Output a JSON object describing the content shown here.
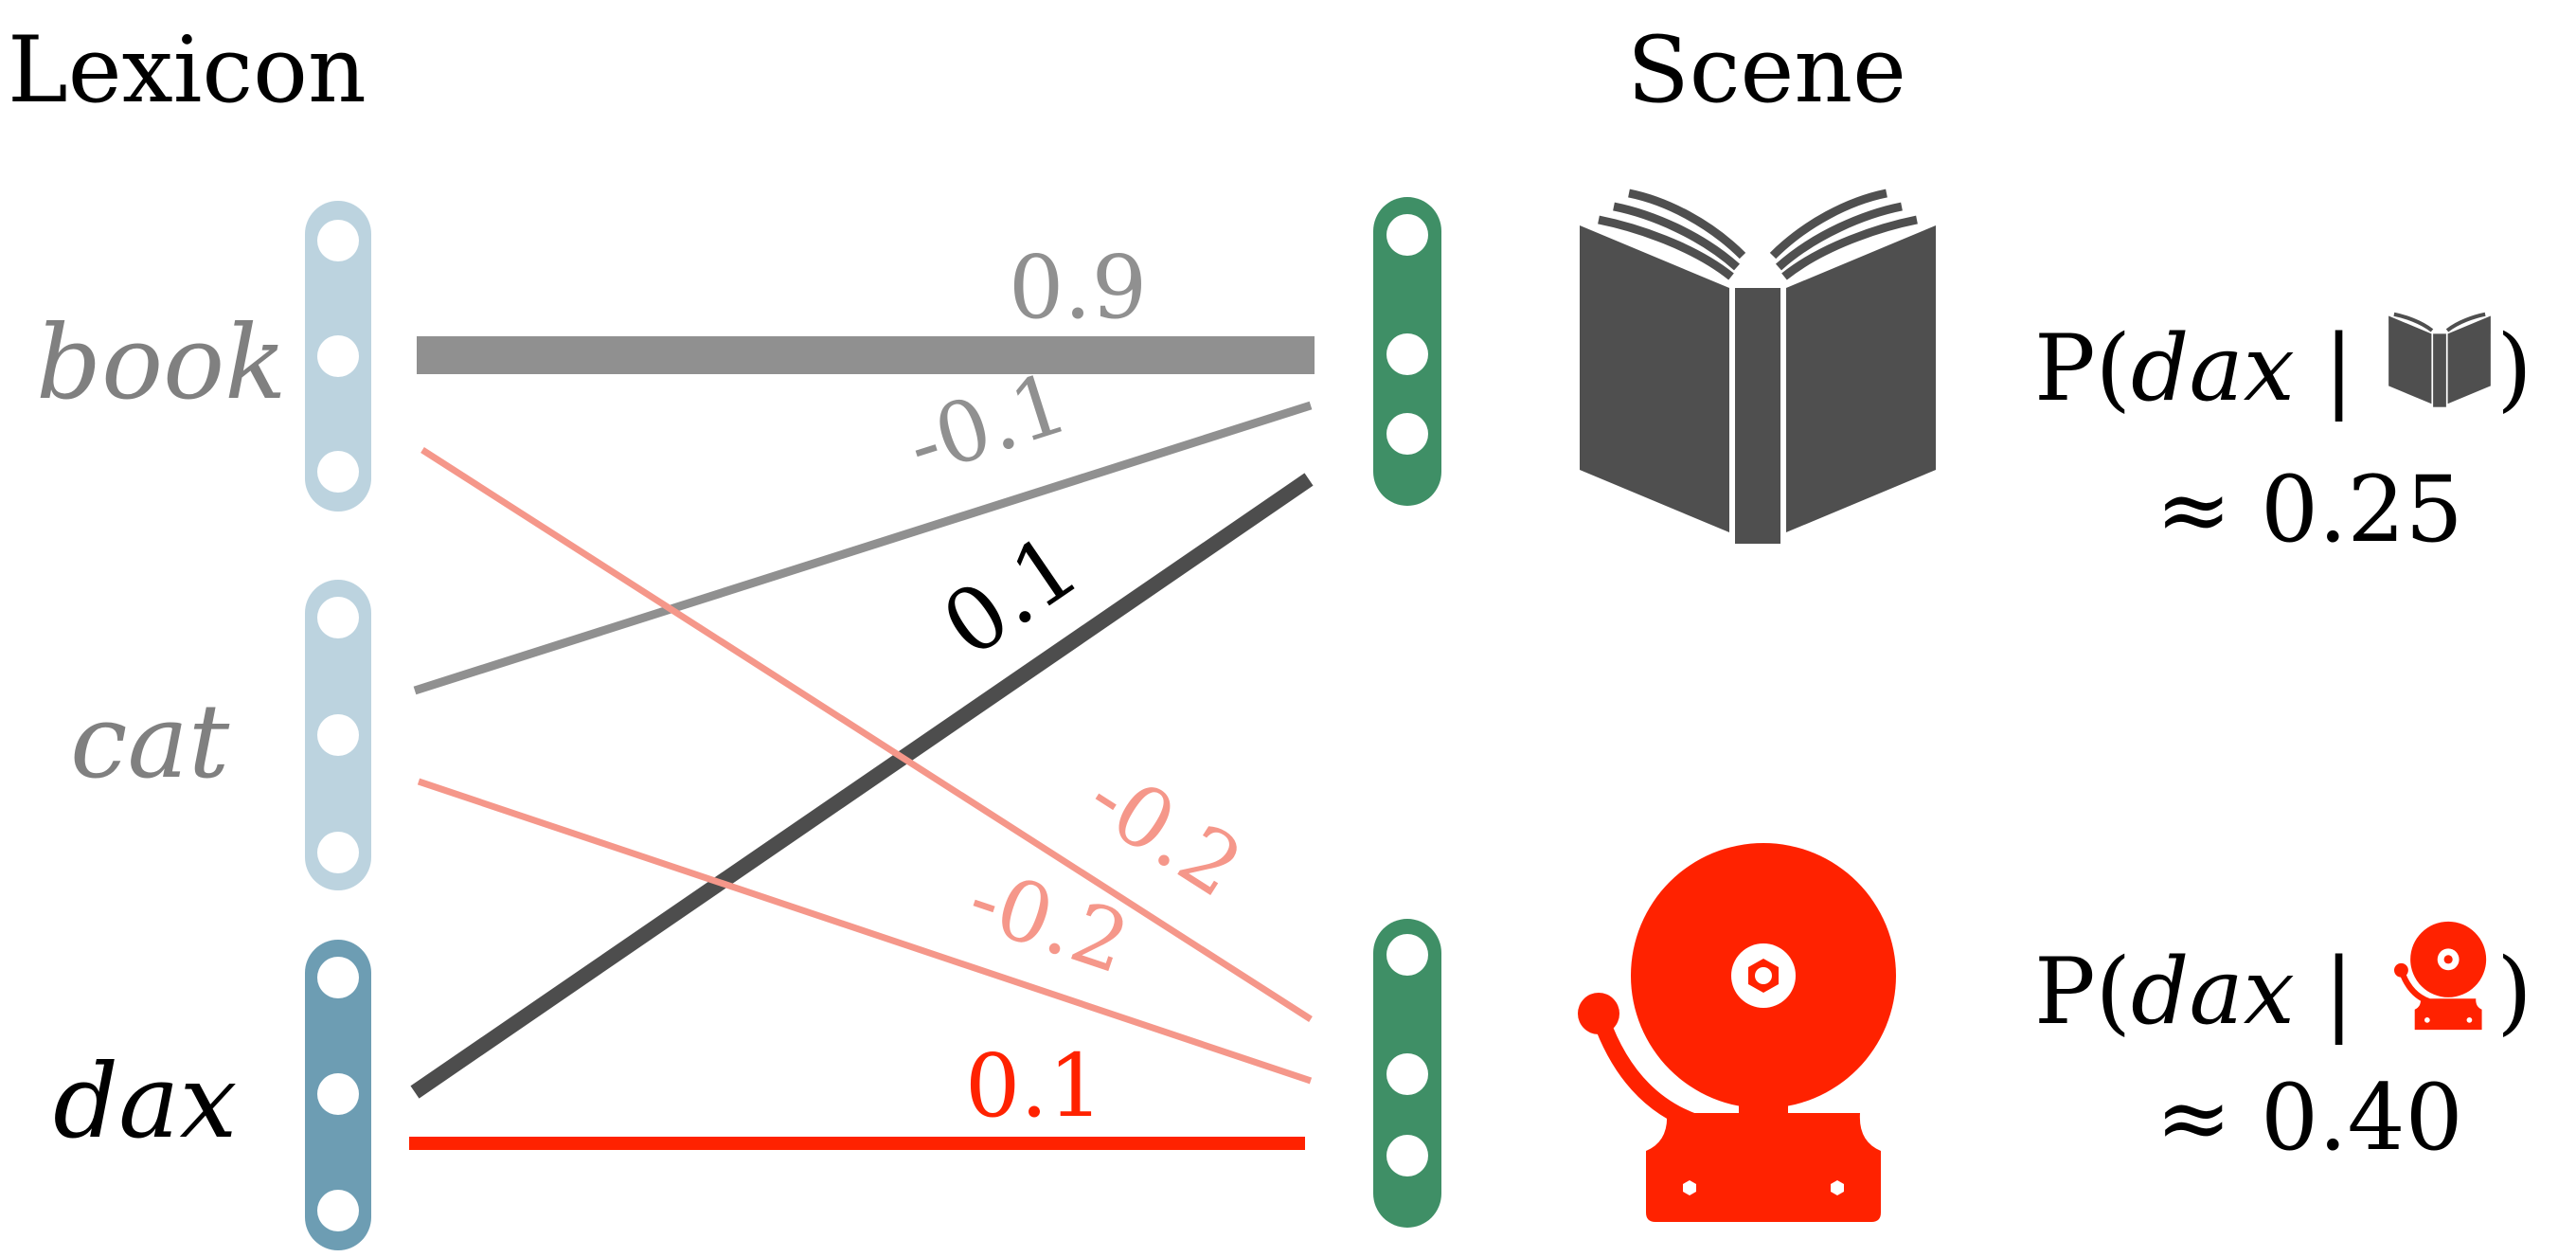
{
  "headings": {
    "lexicon": "Lexicon",
    "scene": "Scene"
  },
  "lexicon": [
    {
      "word": "book",
      "color": "#808080",
      "node_color": "#bcd3df"
    },
    {
      "word": "cat",
      "color": "#808080",
      "node_color": "#bcd3df"
    },
    {
      "word": "dax",
      "color": "#000000",
      "node_color": "#6d9db3"
    }
  ],
  "scene_objects": [
    {
      "name": "book",
      "icon": "open-book-icon",
      "icon_color": "#4f4f4f",
      "node_color": "#3f8f66"
    },
    {
      "name": "bell",
      "icon": "alarm-bell-icon",
      "icon_color": "#ff2200",
      "node_color": "#3f8f66"
    }
  ],
  "weights": [
    {
      "from": "book",
      "to": "book",
      "label": "0.9",
      "color": "#909090"
    },
    {
      "from": "cat",
      "to": "book",
      "label": "-0.1",
      "color": "#909090"
    },
    {
      "from": "dax",
      "to": "book",
      "label": "0.1",
      "color": "#4d4d4d"
    },
    {
      "from": "book",
      "to": "bell",
      "label": "-0.2",
      "color": "#f5978a"
    },
    {
      "from": "cat",
      "to": "bell",
      "label": "-0.2",
      "color": "#f5978a"
    },
    {
      "from": "dax",
      "to": "bell",
      "label": "0.1",
      "color": "#ff2200"
    }
  ],
  "probabilities": [
    {
      "prefix": "P(",
      "word": "dax",
      "bar": "|",
      "suffix": ")",
      "icon": "open-book-icon",
      "approx": "≈",
      "value": "0.25"
    },
    {
      "prefix": "P(",
      "word": "dax",
      "bar": "|",
      "suffix": ")",
      "icon": "alarm-bell-icon",
      "approx": "≈",
      "value": "0.40"
    }
  ]
}
